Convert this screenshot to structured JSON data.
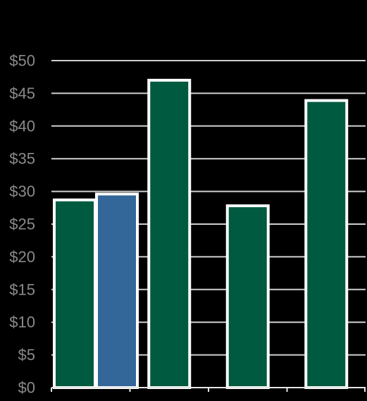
{
  "chart_data": {
    "type": "bar",
    "title": "",
    "xlabel": "",
    "ylabel": "",
    "ylim": [
      0,
      50
    ],
    "y_ticks": [
      0,
      5,
      10,
      15,
      20,
      25,
      30,
      35,
      40,
      45,
      50
    ],
    "y_tick_labels": [
      "$0",
      "$5",
      "$10",
      "$15",
      "$20",
      "$25",
      "$30",
      "$35",
      "$40",
      "$45",
      "$50"
    ],
    "grid": true,
    "legend": "none",
    "categories": [
      "",
      "",
      "",
      ""
    ],
    "series": [
      {
        "color": "#005a40",
        "values": [
          28.7,
          47,
          27.8,
          43.9
        ]
      },
      {
        "color": "#336699",
        "values": [
          29.6,
          null,
          null,
          null
        ]
      }
    ]
  }
}
